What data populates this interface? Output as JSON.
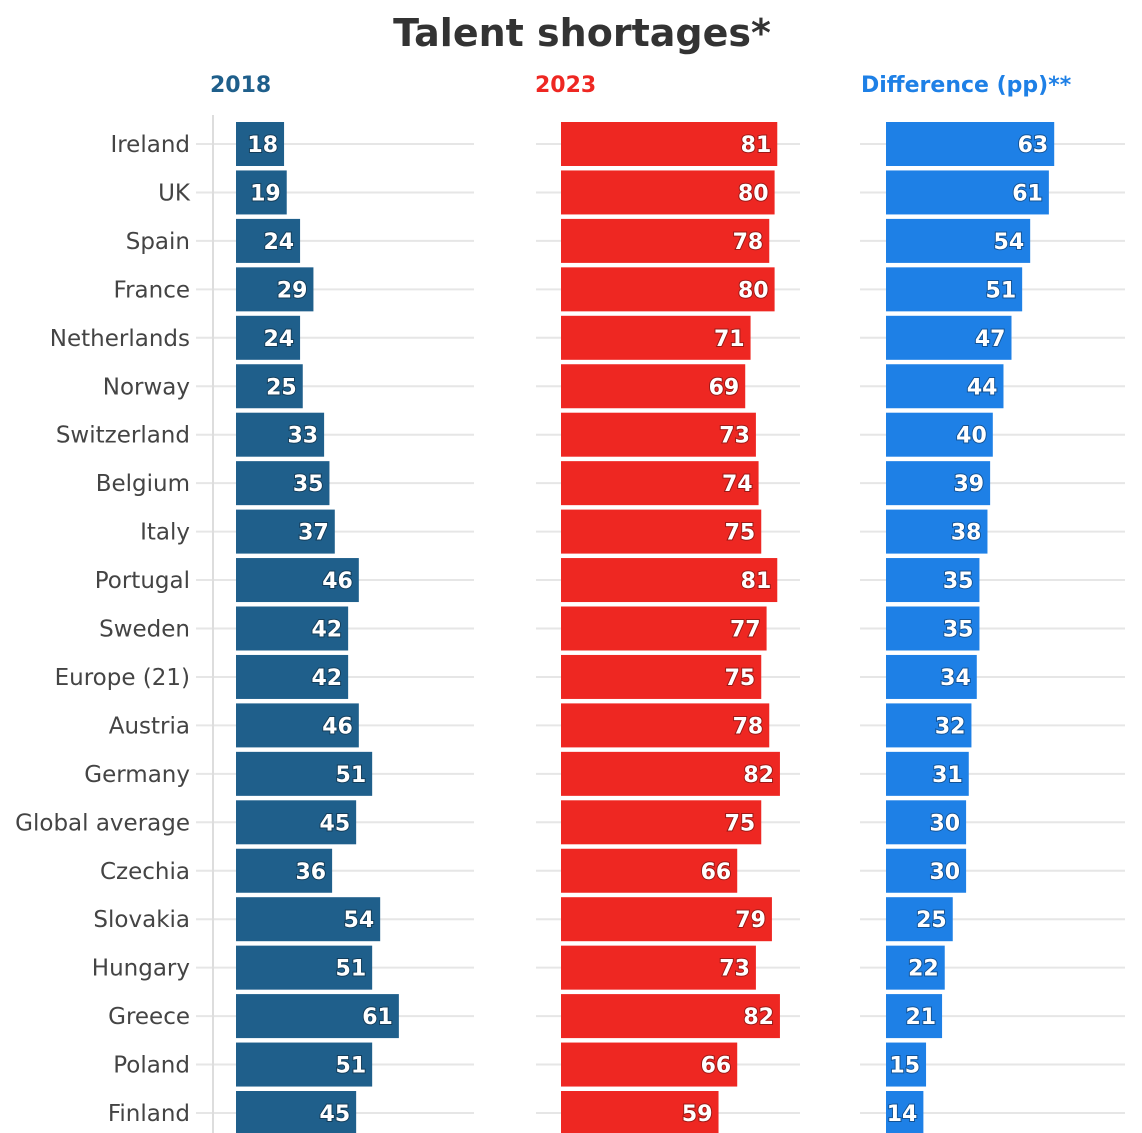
{
  "chart_data": {
    "type": "bar",
    "orientation": "horizontal",
    "title": "Talent shortages*",
    "categories": [
      "Ireland",
      "UK",
      "Spain",
      "France",
      "Netherlands",
      "Norway",
      "Switzerland",
      "Belgium",
      "Italy",
      "Portugal",
      "Sweden",
      "Europe (21)",
      "Austria",
      "Germany",
      "Global average",
      "Czechia",
      "Slovakia",
      "Hungary",
      "Greece",
      "Poland",
      "Finland"
    ],
    "series": [
      {
        "name": "2018",
        "color": "#1f5f8b",
        "values": [
          18,
          19,
          24,
          29,
          24,
          25,
          33,
          35,
          37,
          46,
          42,
          42,
          46,
          51,
          45,
          36,
          54,
          51,
          61,
          51,
          45
        ]
      },
      {
        "name": "2023",
        "color": "#ee2722",
        "values": [
          81,
          80,
          78,
          80,
          71,
          69,
          73,
          74,
          75,
          81,
          77,
          75,
          78,
          82,
          75,
          66,
          79,
          73,
          82,
          66,
          59
        ]
      },
      {
        "name": "Difference (pp)**",
        "color": "#1e80e6",
        "values": [
          63,
          61,
          54,
          51,
          47,
          44,
          40,
          39,
          38,
          35,
          35,
          34,
          32,
          31,
          30,
          30,
          25,
          22,
          21,
          15,
          14
        ]
      }
    ],
    "layout": "small-multiples",
    "grid": true,
    "legend": "none"
  }
}
